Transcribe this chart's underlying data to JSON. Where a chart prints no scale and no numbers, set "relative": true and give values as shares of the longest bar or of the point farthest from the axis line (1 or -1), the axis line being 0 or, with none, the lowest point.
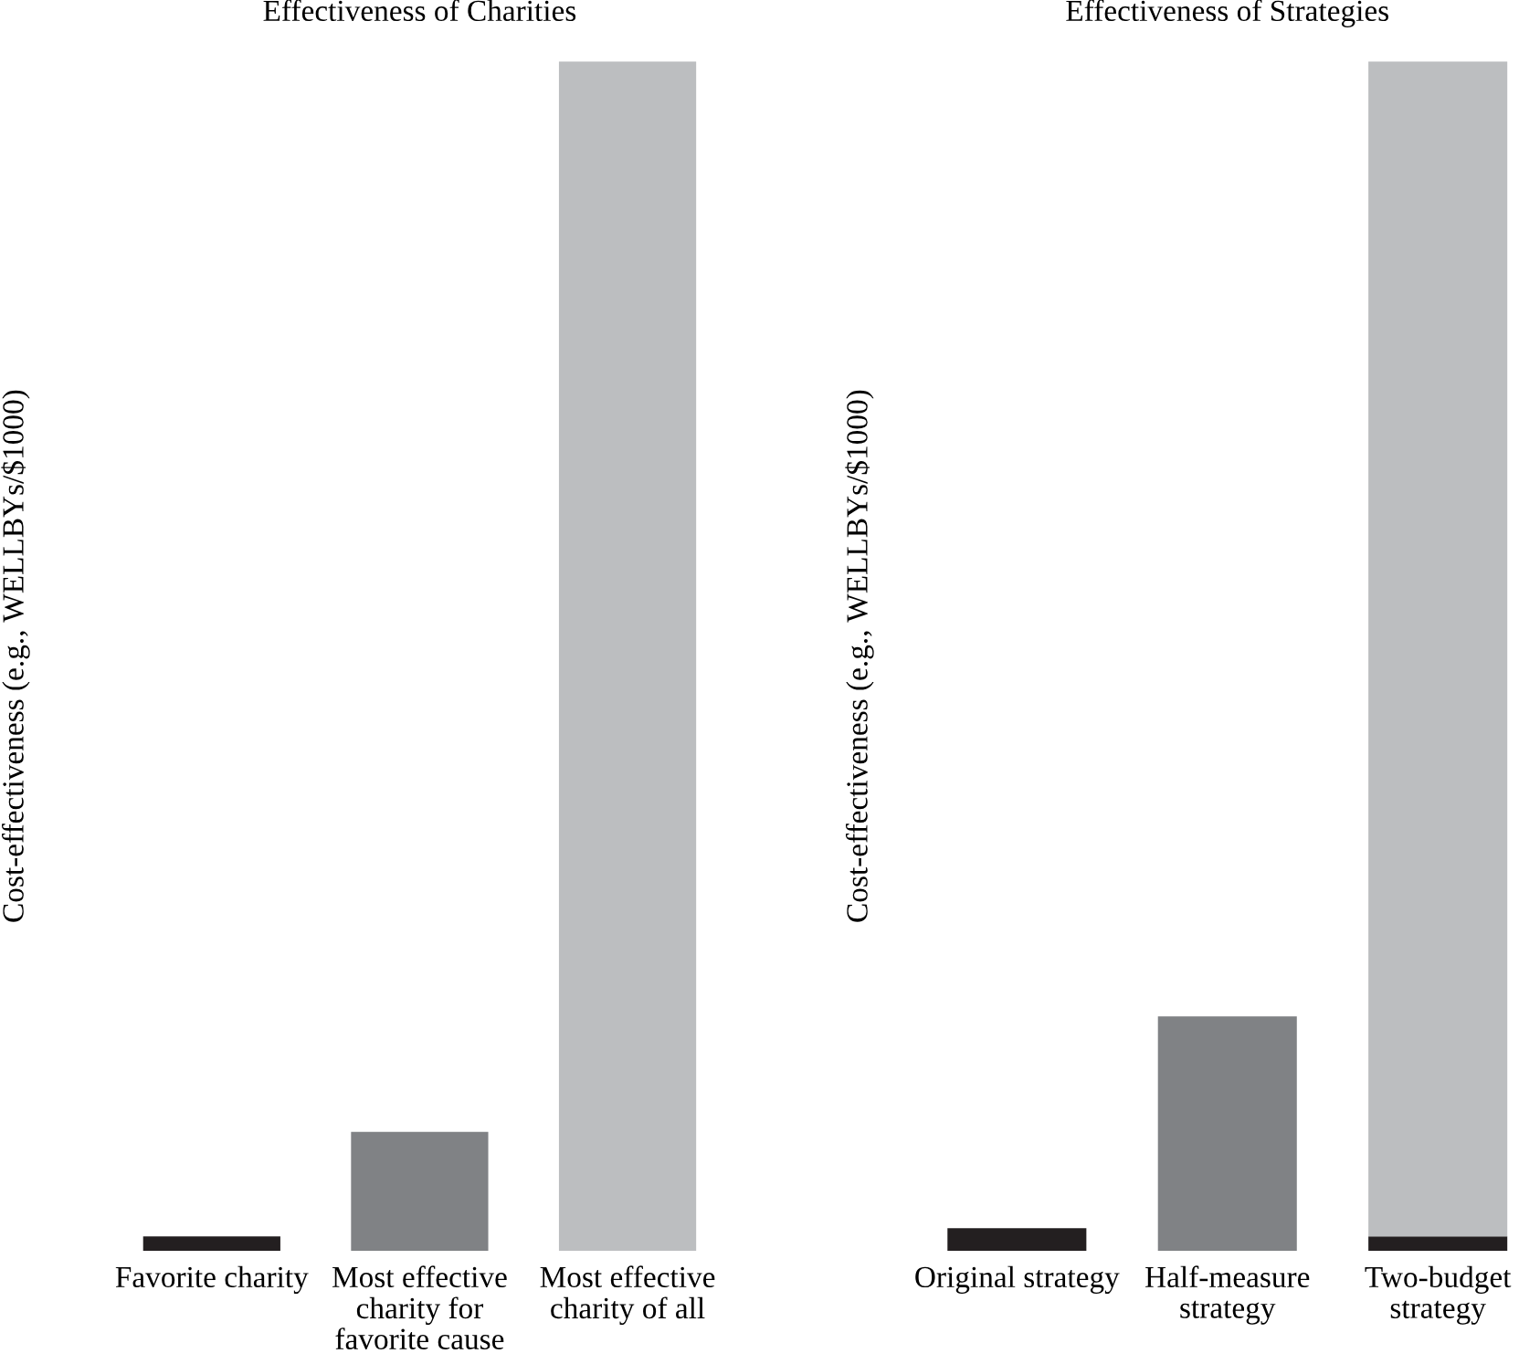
{
  "chart_data": [
    {
      "type": "bar",
      "title": "Effectiveness of Charities",
      "ylabel": "Cost-effectiveness (e.g., WELLBYs/$1000)",
      "relative": true,
      "categories": [
        "Favorite charity",
        "Most effective\ncharity for\nfavorite cause",
        "Most effective\ncharity of all"
      ],
      "values": [
        0.012,
        0.1,
        1
      ],
      "colors": [
        "#231f20",
        "#808285",
        "#bcbec0"
      ]
    },
    {
      "type": "bar",
      "title": "Effectiveness of Strategies",
      "ylabel": "Cost-effectiveness (e.g., WELLBYs/$1000)",
      "relative": true,
      "stacked": true,
      "categories": [
        "Original strategy",
        "Half-measure\nstrategy",
        "Two-budget\nstrategy"
      ],
      "series": [
        {
          "values": [
            0.019,
            0.197,
            0.012
          ],
          "colors": [
            "#231f20",
            "#808285",
            "#231f20"
          ]
        },
        {
          "values": [
            null,
            null,
            0.988
          ],
          "color": "#bcbec0"
        }
      ]
    }
  ]
}
